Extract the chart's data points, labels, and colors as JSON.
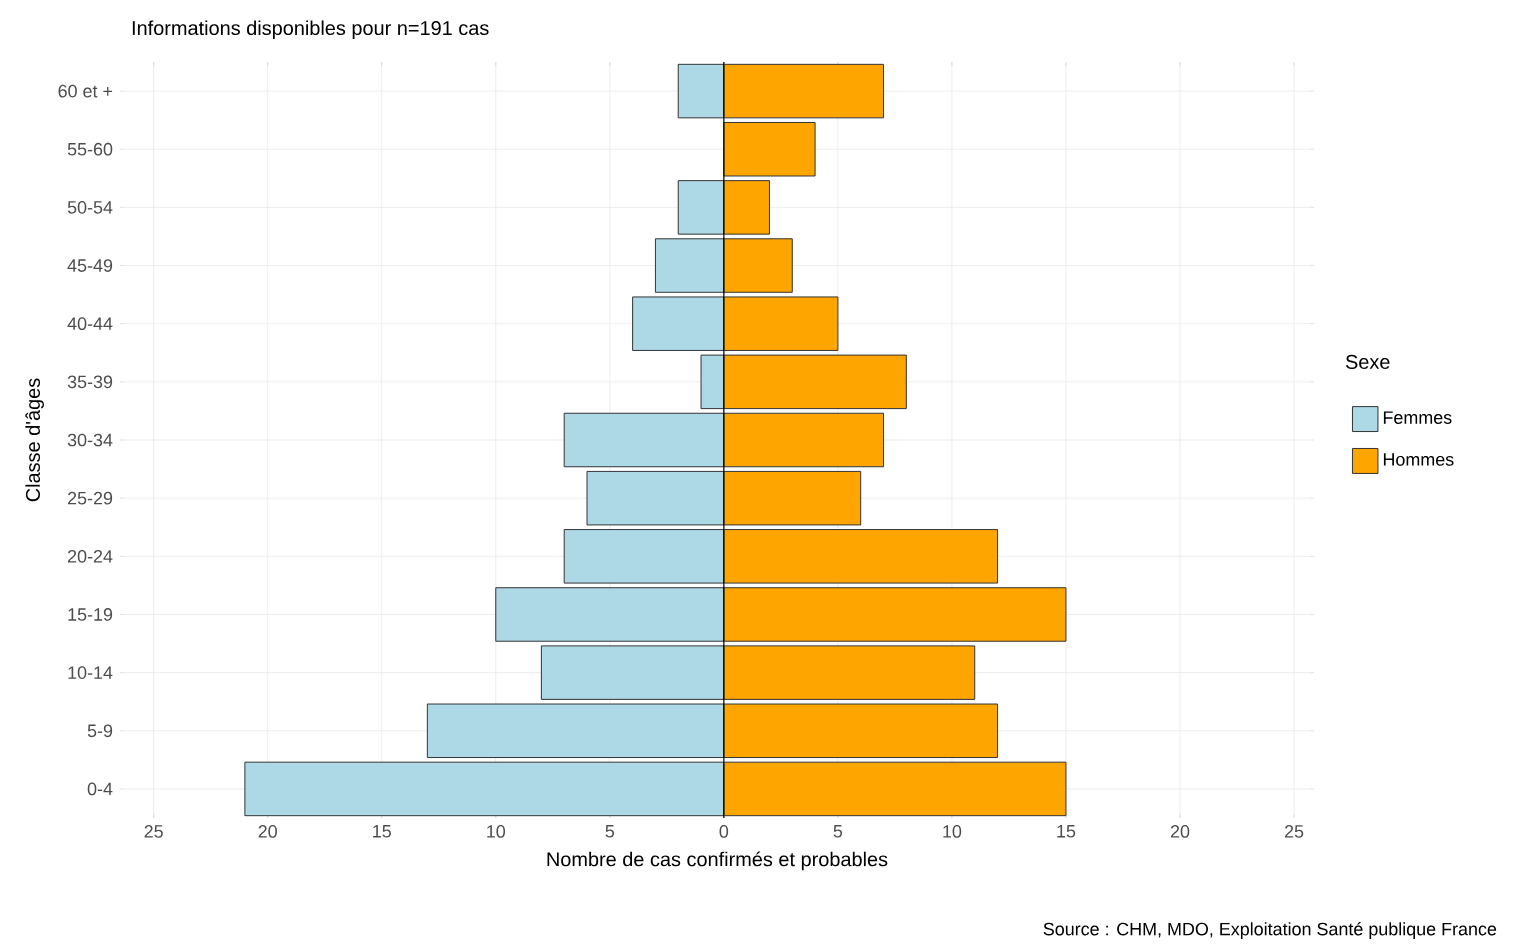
{
  "chart_data": {
    "type": "bar",
    "orientation": "horizontal",
    "stacked": true,
    "title": "Informations disponibles pour n=191 cas",
    "xlabel": "Nombre de cas confirmés et probables",
    "ylabel": "Classe d'âges",
    "legend_title": "Sexe",
    "legend": "right",
    "grid": true,
    "annotations": [
      "Source : CHM, MDO, Exploitation Santé publique France"
    ],
    "categories": [
      "60 et +",
      "55-60",
      "50-54",
      "45-49",
      "40-44",
      "35-39",
      "30-34",
      "25-29",
      "20-24",
      "15-19",
      "10-14",
      "5-9",
      "0-4"
    ],
    "series": [
      {
        "name": "Femmes",
        "color": "#add8e6",
        "values": [
          -2,
          0,
          -2,
          -3,
          -4,
          -1,
          -7,
          -6,
          -7,
          -10,
          -8,
          -13,
          -21
        ]
      },
      {
        "name": "Hommes",
        "color": "#ffa500",
        "values": [
          7,
          4,
          2,
          3,
          5,
          8,
          7,
          6,
          12,
          15,
          11,
          12,
          15
        ]
      }
    ],
    "xlim": [
      -26.3,
      25.7
    ],
    "xticks": [
      {
        "value": -25,
        "label": "25"
      },
      {
        "value": -20,
        "label": "20"
      },
      {
        "value": -15,
        "label": "15"
      },
      {
        "value": -10,
        "label": "10"
      },
      {
        "value": -5,
        "label": "5"
      },
      0,
      5,
      10,
      15,
      20,
      25
    ]
  }
}
